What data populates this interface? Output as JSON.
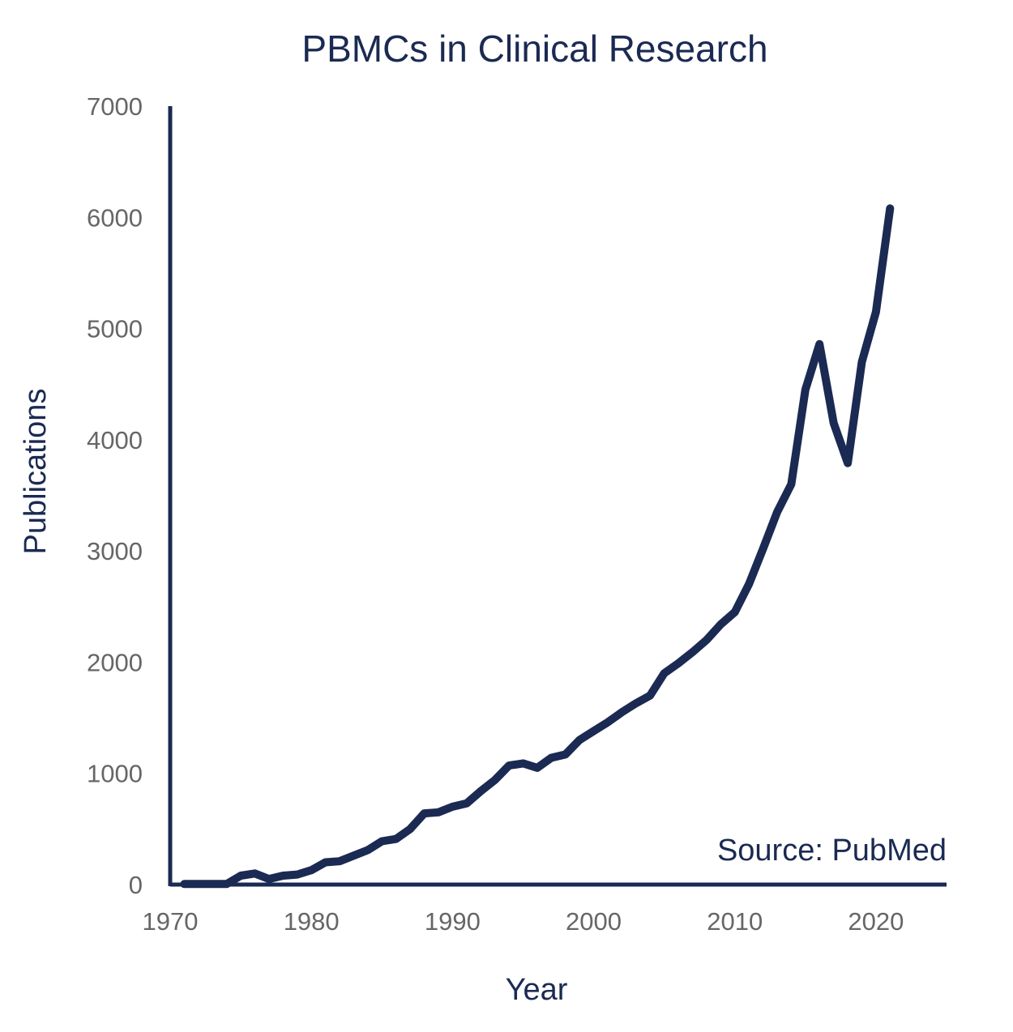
{
  "chart_data": {
    "type": "line",
    "title": "PBMCs in Clinical Research",
    "xlabel": "Year",
    "ylabel": "Publications",
    "annotation": "Source: PubMed",
    "xlim": [
      1970,
      2025
    ],
    "ylim": [
      0,
      7000
    ],
    "xticks": [
      1970,
      1980,
      1990,
      2000,
      2010,
      2020
    ],
    "yticks": [
      0,
      1000,
      2000,
      3000,
      4000,
      5000,
      6000,
      7000
    ],
    "grid": false,
    "colors": {
      "line": "#1b2a52",
      "axis": "#1b2a52",
      "text": "#1b2a52",
      "tick_text": "#666666"
    },
    "series": [
      {
        "x": [
          1971,
          1972,
          1973,
          1974,
          1975,
          1976,
          1977,
          1978,
          1979,
          1980,
          1981,
          1982,
          1983,
          1984,
          1985,
          1986,
          1987,
          1988,
          1989,
          1990,
          1991,
          1992,
          1993,
          1994,
          1995,
          1996,
          1997,
          1998,
          1999,
          2000,
          2001,
          2002,
          2003,
          2004,
          2005,
          2006,
          2007,
          2008,
          2009,
          2010,
          2011,
          2012,
          2013,
          2014,
          2015,
          2016,
          2017,
          2018,
          2019,
          2020,
          2021
        ],
        "y": [
          5,
          5,
          5,
          5,
          80,
          100,
          50,
          80,
          90,
          130,
          200,
          210,
          260,
          310,
          390,
          410,
          500,
          640,
          650,
          700,
          730,
          840,
          940,
          1070,
          1090,
          1050,
          1140,
          1170,
          1300,
          1380,
          1460,
          1550,
          1630,
          1700,
          1900,
          1990,
          2090,
          2200,
          2340,
          2450,
          2700,
          3020,
          3350,
          3600,
          4450,
          4860,
          4150,
          3790,
          4700,
          5150,
          6080
        ]
      }
    ]
  }
}
